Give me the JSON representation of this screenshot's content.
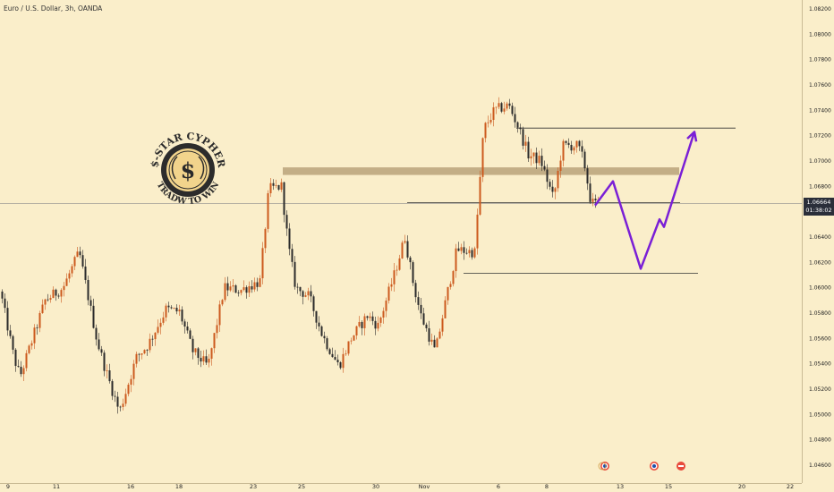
{
  "title": "Euro / U.S. Dollar, 3h, OANDA",
  "current_price": "1.06664",
  "countdown": "01:38:02",
  "logo": {
    "top_text": "$-STAR CYPHER",
    "bottom_text": "TRADW TO WIN",
    "symbol": "$"
  },
  "event_icons": [
    "flag-icon",
    "flag-icon",
    "flag-icon"
  ],
  "colors": {
    "background": "#faeeca",
    "up": "#cc5a1e",
    "down": "#2b2b2b",
    "projection": "#7a1fd6",
    "zone": "#b8a27a",
    "level": "#333333"
  },
  "chart_data": {
    "type": "candlestick",
    "title": "Euro / U.S. Dollar, 3h, OANDA",
    "ylim": [
      1.0452,
      1.0823
    ],
    "y_ticks": [
      "1.04600",
      "1.04800",
      "1.05000",
      "1.05200",
      "1.05400",
      "1.05600",
      "1.05800",
      "1.06000",
      "1.06200",
      "1.06400",
      "1.06600",
      "1.06800",
      "1.07000",
      "1.07200",
      "1.07400",
      "1.07600",
      "1.07800",
      "1.08000",
      "1.08200"
    ],
    "x_ticks": [
      "9",
      "11",
      "16",
      "18",
      "23",
      "25",
      "30",
      "Nov",
      "6",
      "8",
      "13",
      "15",
      "20",
      "22"
    ],
    "grid": false,
    "price_line": 1.06664,
    "anchors": [
      [
        0,
        1.0597
      ],
      [
        15,
        1.0545
      ],
      [
        22,
        1.053
      ],
      [
        50,
        1.059
      ],
      [
        70,
        1.06
      ],
      [
        88,
        1.0628
      ],
      [
        108,
        1.0558
      ],
      [
        118,
        1.0534
      ],
      [
        133,
        1.0502
      ],
      [
        152,
        1.0545
      ],
      [
        165,
        1.0555
      ],
      [
        185,
        1.0583
      ],
      [
        200,
        1.0581
      ],
      [
        215,
        1.055
      ],
      [
        232,
        1.0538
      ],
      [
        250,
        1.06
      ],
      [
        268,
        1.0598
      ],
      [
        290,
        1.0605
      ],
      [
        300,
        1.0678
      ],
      [
        314,
        1.068
      ],
      [
        322,
        1.0632
      ],
      [
        330,
        1.06
      ],
      [
        345,
        1.0593
      ],
      [
        360,
        1.0562
      ],
      [
        378,
        1.0538
      ],
      [
        392,
        1.056
      ],
      [
        410,
        1.0578
      ],
      [
        422,
        1.057
      ],
      [
        440,
        1.061
      ],
      [
        452,
        1.064
      ],
      [
        462,
        1.0601
      ],
      [
        470,
        1.0578
      ],
      [
        486,
        1.0549
      ],
      [
        498,
        1.0591
      ],
      [
        510,
        1.063
      ],
      [
        530,
        1.0628
      ],
      [
        540,
        1.0725
      ],
      [
        552,
        1.074
      ],
      [
        568,
        1.0744
      ],
      [
        578,
        1.0728
      ],
      [
        590,
        1.0705
      ],
      [
        604,
        1.07
      ],
      [
        618,
        1.067
      ],
      [
        628,
        1.0712
      ],
      [
        645,
        1.0712
      ],
      [
        652,
        1.07
      ],
      [
        660,
        1.0667
      ],
      [
        670,
        1.0666
      ]
    ],
    "resistance_zone": [
      1.0695,
      1.0689
    ],
    "levels": [
      {
        "y": 1.0726,
        "x_range": [
          577,
          822
        ]
      },
      {
        "y": 1.06672,
        "x_range": [
          455,
          760
        ]
      },
      {
        "y": 1.06115,
        "x_range": [
          518,
          780
        ]
      }
    ],
    "projection_path": [
      [
        665,
        1.0665
      ],
      [
        685,
        1.0684
      ],
      [
        716,
        1.0615
      ],
      [
        737,
        1.0654
      ],
      [
        742,
        1.0648
      ],
      [
        776,
        1.0723
      ]
    ]
  }
}
